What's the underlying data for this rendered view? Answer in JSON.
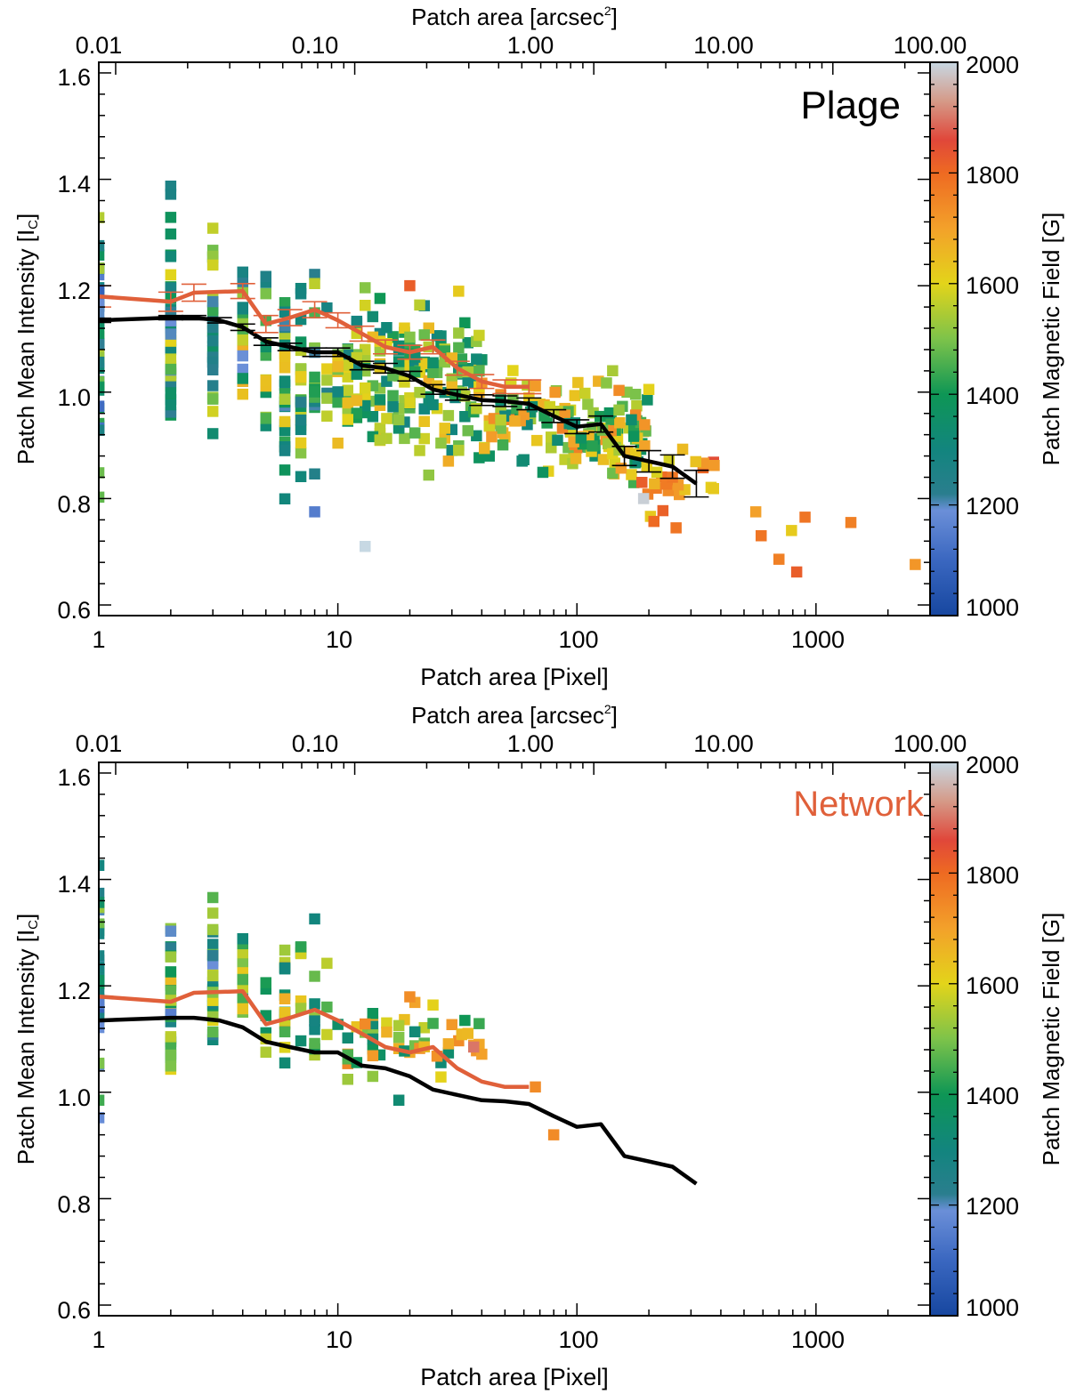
{
  "chart_data": [
    {
      "type": "scatter",
      "panel_label": "Plage",
      "panel_label_color": "#000000",
      "xlabel": "Patch area [Pixel]",
      "x2label": "Patch area [arcsec",
      "x2label_sup": "2",
      "x2label_end": "]",
      "ylabel": "Patch Mean Intensity [I",
      "ylabel_sub": "C",
      "ylabel_end": "]",
      "xscale": "log",
      "xlim": [
        1,
        3000
      ],
      "ylim": [
        0.58,
        1.62
      ],
      "x_ticks": [
        "1",
        "10",
        "100",
        "1000"
      ],
      "x2_ticks": [
        "0.01",
        "0.10",
        "1.00",
        "10.00",
        "100.00"
      ],
      "y_ticks": [
        "0.6",
        "0.8",
        "1.0",
        "1.2",
        "1.4",
        "1.6"
      ],
      "colorbar": {
        "label": "Patch Magnetic Field [G]",
        "range": [
          1000,
          2000
        ],
        "ticks": [
          "1000",
          "1200",
          "1400",
          "1600",
          "1800",
          "2000"
        ]
      },
      "series": [
        {
          "name": "Plage mean (binned)",
          "color": "#000000",
          "x": [
            1,
            2,
            2.5,
            3.2,
            4,
            5,
            6.3,
            8,
            10,
            12.6,
            15.8,
            20,
            25,
            31.6,
            40,
            50,
            63,
            80,
            100,
            126,
            158,
            200,
            251,
            316
          ],
          "y": [
            1.135,
            1.14,
            1.14,
            1.135,
            1.122,
            1.095,
            1.085,
            1.075,
            1.075,
            1.05,
            1.045,
            1.03,
            1.005,
            0.995,
            0.985,
            0.983,
            0.978,
            0.955,
            0.935,
            0.94,
            0.88,
            0.87,
            0.86,
            0.828
          ],
          "yerr": [
            0.004,
            0.004,
            0.004,
            0.005,
            0.006,
            0.007,
            0.007,
            0.008,
            0.008,
            0.008,
            0.009,
            0.009,
            0.009,
            0.01,
            0.01,
            0.01,
            0.011,
            0.012,
            0.013,
            0.015,
            0.018,
            0.02,
            0.022,
            0.025
          ]
        },
        {
          "name": "Network mean (binned)",
          "color": "#E0603A",
          "x": [
            1,
            2,
            2.5,
            4,
            5,
            6.3,
            8,
            10,
            12.6,
            15.8,
            20,
            25,
            31.6,
            40,
            50,
            63
          ],
          "y": [
            1.18,
            1.17,
            1.187,
            1.19,
            1.128,
            1.14,
            1.155,
            1.135,
            1.11,
            1.085,
            1.075,
            1.085,
            1.045,
            1.02,
            1.01,
            1.01
          ],
          "yerr": [
            0.02,
            0.018,
            0.016,
            0.014,
            0.016,
            0.015,
            0.015,
            0.014,
            0.014,
            0.013,
            0.013,
            0.013,
            0.013,
            0.013,
            0.013,
            0.013
          ]
        }
      ],
      "scatter_groups": [
        {
          "x_min": 1,
          "x_max": 1,
          "count": 46,
          "y_min": 0.73,
          "y_max": 1.46,
          "b_min": 1080,
          "b_max": 1560,
          "seed": 11
        },
        {
          "x_min": 2,
          "x_max": 2,
          "count": 40,
          "y_min": 0.79,
          "y_max": 1.56,
          "b_min": 1150,
          "b_max": 1620,
          "seed": 12
        },
        {
          "x_min": 3,
          "x_max": 3,
          "count": 32,
          "y_min": 0.9,
          "y_max": 1.39,
          "b_min": 1180,
          "b_max": 1620,
          "seed": 13
        },
        {
          "x_min": 4,
          "x_max": 4,
          "count": 26,
          "y_min": 0.89,
          "y_max": 1.31,
          "b_min": 1180,
          "b_max": 1700,
          "seed": 14
        },
        {
          "x_min": 5,
          "x_max": 9,
          "count": 95,
          "y_min": 0.76,
          "y_max": 1.27,
          "b_min": 1200,
          "b_max": 1650,
          "seed": 15
        },
        {
          "x_min": 10,
          "x_max": 40,
          "count": 190,
          "y_min": 0.82,
          "y_max": 1.22,
          "b_min": 1280,
          "b_max": 1680,
          "seed": 16
        },
        {
          "x_min": 40,
          "x_max": 200,
          "count": 150,
          "y_min": 0.8,
          "y_max": 1.07,
          "b_min": 1300,
          "b_max": 1760,
          "seed": 17
        },
        {
          "x_min": 180,
          "x_max": 380,
          "count": 26,
          "y_min": 0.74,
          "y_max": 0.93,
          "b_min": 1550,
          "b_max": 1850,
          "seed": 18
        }
      ],
      "scatter_points": [
        {
          "x": 13,
          "y": 0.71,
          "b": 2000
        },
        {
          "x": 8,
          "y": 0.775,
          "b": 1150
        },
        {
          "x": 20,
          "y": 1.2,
          "b": 1820
        },
        {
          "x": 560,
          "y": 0.775,
          "b": 1700
        },
        {
          "x": 590,
          "y": 0.73,
          "b": 1780
        },
        {
          "x": 700,
          "y": 0.686,
          "b": 1760
        },
        {
          "x": 790,
          "y": 0.74,
          "b": 1620
        },
        {
          "x": 830,
          "y": 0.662,
          "b": 1820
        },
        {
          "x": 900,
          "y": 0.765,
          "b": 1780
        },
        {
          "x": 1400,
          "y": 0.755,
          "b": 1760
        },
        {
          "x": 2600,
          "y": 0.676,
          "b": 1720
        },
        {
          "x": 190,
          "y": 0.8,
          "b": 1990
        },
        {
          "x": 210,
          "y": 0.757,
          "b": 1800
        },
        {
          "x": 260,
          "y": 0.745,
          "b": 1780
        }
      ]
    },
    {
      "type": "scatter",
      "panel_label": "Network",
      "panel_label_color": "#E0603A",
      "xlabel": "Patch area [Pixel]",
      "x2label": "Patch area [arcsec",
      "x2label_sup": "2",
      "x2label_end": "]",
      "ylabel": "Patch Mean Intensity [I",
      "ylabel_sub": "C",
      "ylabel_end": "]",
      "xscale": "log",
      "xlim": [
        1,
        3000
      ],
      "ylim": [
        0.58,
        1.62
      ],
      "x_ticks": [
        "1",
        "10",
        "100",
        "1000"
      ],
      "x2_ticks": [
        "0.01",
        "0.10",
        "1.00",
        "10.00",
        "100.00"
      ],
      "y_ticks": [
        "0.6",
        "0.8",
        "1.0",
        "1.2",
        "1.4",
        "1.6"
      ],
      "colorbar": {
        "label": "Patch Magnetic Field [G]",
        "range": [
          1000,
          2000
        ],
        "ticks": [
          "1000",
          "1200",
          "1400",
          "1600",
          "1800",
          "2000"
        ]
      },
      "series": [
        {
          "name": "Plage mean (binned)",
          "color": "#000000",
          "x": [
            1,
            2,
            2.5,
            3.2,
            4,
            5,
            6.3,
            8,
            10,
            12.6,
            15.8,
            20,
            25,
            31.6,
            40,
            50,
            63,
            80,
            100,
            126,
            158,
            200,
            251,
            316
          ],
          "y": [
            1.135,
            1.14,
            1.14,
            1.135,
            1.122,
            1.095,
            1.085,
            1.075,
            1.075,
            1.05,
            1.045,
            1.03,
            1.005,
            0.995,
            0.985,
            0.983,
            0.978,
            0.955,
            0.935,
            0.94,
            0.88,
            0.87,
            0.86,
            0.828
          ]
        },
        {
          "name": "Network mean (binned)",
          "color": "#E0603A",
          "x": [
            1,
            2,
            2.5,
            4,
            5,
            6.3,
            8,
            10,
            12.6,
            15.8,
            20,
            25,
            31.6,
            40,
            50,
            63
          ],
          "y": [
            1.18,
            1.17,
            1.187,
            1.19,
            1.128,
            1.14,
            1.155,
            1.135,
            1.11,
            1.085,
            1.075,
            1.085,
            1.045,
            1.02,
            1.01,
            1.01
          ]
        }
      ],
      "scatter_groups": [
        {
          "x_min": 1,
          "x_max": 1,
          "count": 40,
          "y_min": 0.915,
          "y_max": 1.53,
          "b_min": 1080,
          "b_max": 1560,
          "seed": 21
        },
        {
          "x_min": 2,
          "x_max": 2,
          "count": 32,
          "y_min": 0.97,
          "y_max": 1.42,
          "b_min": 1150,
          "b_max": 1720,
          "seed": 22
        },
        {
          "x_min": 3,
          "x_max": 3,
          "count": 28,
          "y_min": 0.985,
          "y_max": 1.415,
          "b_min": 1180,
          "b_max": 1620,
          "seed": 23
        },
        {
          "x_min": 4,
          "x_max": 4,
          "count": 14,
          "y_min": 1.07,
          "y_max": 1.335,
          "b_min": 1300,
          "b_max": 1720,
          "seed": 24
        },
        {
          "x_min": 5,
          "x_max": 9,
          "count": 40,
          "y_min": 0.99,
          "y_max": 1.37,
          "b_min": 1280,
          "b_max": 1700,
          "seed": 25
        },
        {
          "x_min": 10,
          "x_max": 40,
          "count": 55,
          "y_min": 0.985,
          "y_max": 1.2,
          "b_min": 1320,
          "b_max": 1760,
          "seed": 26
        }
      ],
      "scatter_points": [
        {
          "x": 37,
          "y": 1.085,
          "b": 1900
        },
        {
          "x": 67,
          "y": 1.01,
          "b": 1740
        },
        {
          "x": 80,
          "y": 0.92,
          "b": 1740
        },
        {
          "x": 18,
          "y": 0.985,
          "b": 1330
        }
      ]
    }
  ]
}
